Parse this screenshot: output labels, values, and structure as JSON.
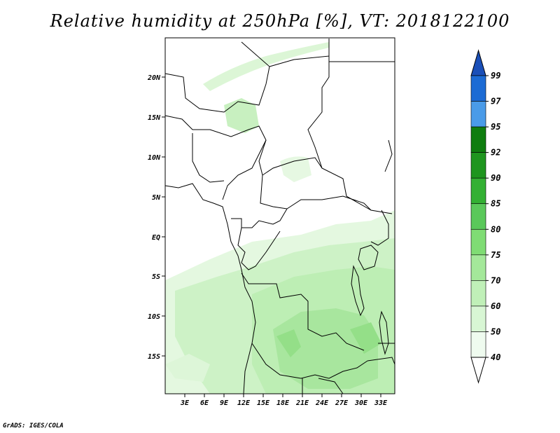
{
  "title": "Relative humidity at 250hPa [%], VT: 2018122100",
  "credit": "GrADS: IGES/COLA",
  "map": {
    "lat_ticks": [
      "20N",
      "15N",
      "10N",
      "5N",
      "EQ",
      "5S",
      "10S",
      "15S"
    ],
    "lon_ticks": [
      "3E",
      "6E",
      "9E",
      "12E",
      "15E",
      "18E",
      "21E",
      "24E",
      "27E",
      "30E",
      "33E"
    ]
  },
  "colorbar": {
    "levels": [
      "99",
      "97",
      "95",
      "92",
      "90",
      "85",
      "80",
      "75",
      "70",
      "60",
      "50",
      "40"
    ],
    "colors": [
      "#ffffff",
      "#effbef",
      "#d8f6d4",
      "#c0f0b8",
      "#a4e89a",
      "#7fdc74",
      "#5ac85a",
      "#33b033",
      "#1e951e",
      "#0f7d0f",
      "#4a9be8",
      "#1c6bd4",
      "#1a4fb8"
    ]
  }
}
